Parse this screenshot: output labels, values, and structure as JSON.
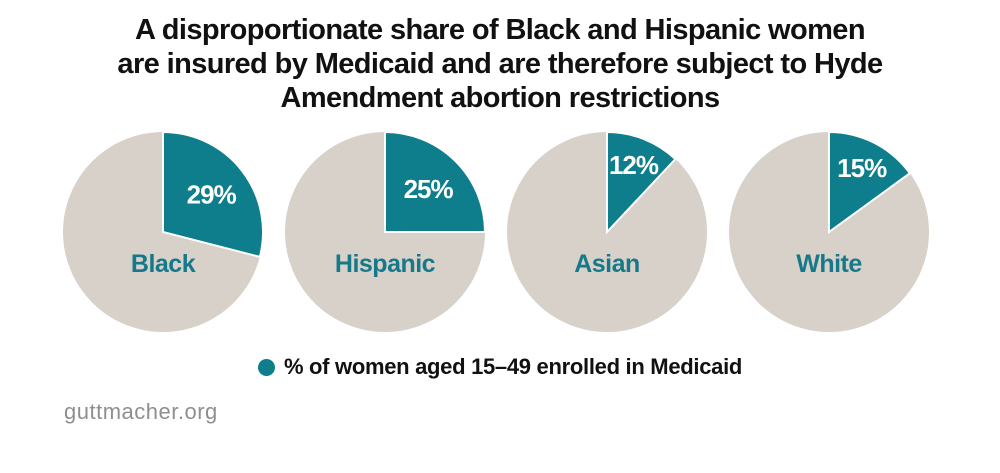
{
  "title": {
    "lines": [
      "A disproportionate share of Black and Hispanic women",
      "are insured by Medicaid and are therefore subject to Hyde",
      "Amendment abortion restrictions"
    ]
  },
  "legend": {
    "dot_icon": "filled-circle",
    "label": "% of women aged 15–49 enrolled in Medicaid"
  },
  "footer": {
    "site": "guttmacher.org"
  },
  "colors": {
    "accent_teal": "#0e7d8c",
    "pie_remainder": "#d8d1ca",
    "category_label": "#15798a",
    "percent_label": "#ffffff",
    "title_text": "#111111",
    "footer_text": "#8f8f8f",
    "background": "#ffffff"
  },
  "chart_data": {
    "type": "pie",
    "title": "A disproportionate share of Black and Hispanic women are insured by Medicaid and are therefore subject to Hyde Amendment abortion restrictions",
    "legend": "% of women aged 15–49 enrolled in Medicaid",
    "legend_position": "bottom-center",
    "source": "guttmacher.org",
    "slice_color": "#0e7d8c",
    "remainder_color": "#d8d1ca",
    "slice_start": "12-oclock-clockwise",
    "pies": [
      {
        "category": "Black",
        "value": 29,
        "label": "29%"
      },
      {
        "category": "Hispanic",
        "value": 25,
        "label": "25%"
      },
      {
        "category": "Asian",
        "value": 12,
        "label": "12%"
      },
      {
        "category": "White",
        "value": 15,
        "label": "15%"
      }
    ]
  }
}
